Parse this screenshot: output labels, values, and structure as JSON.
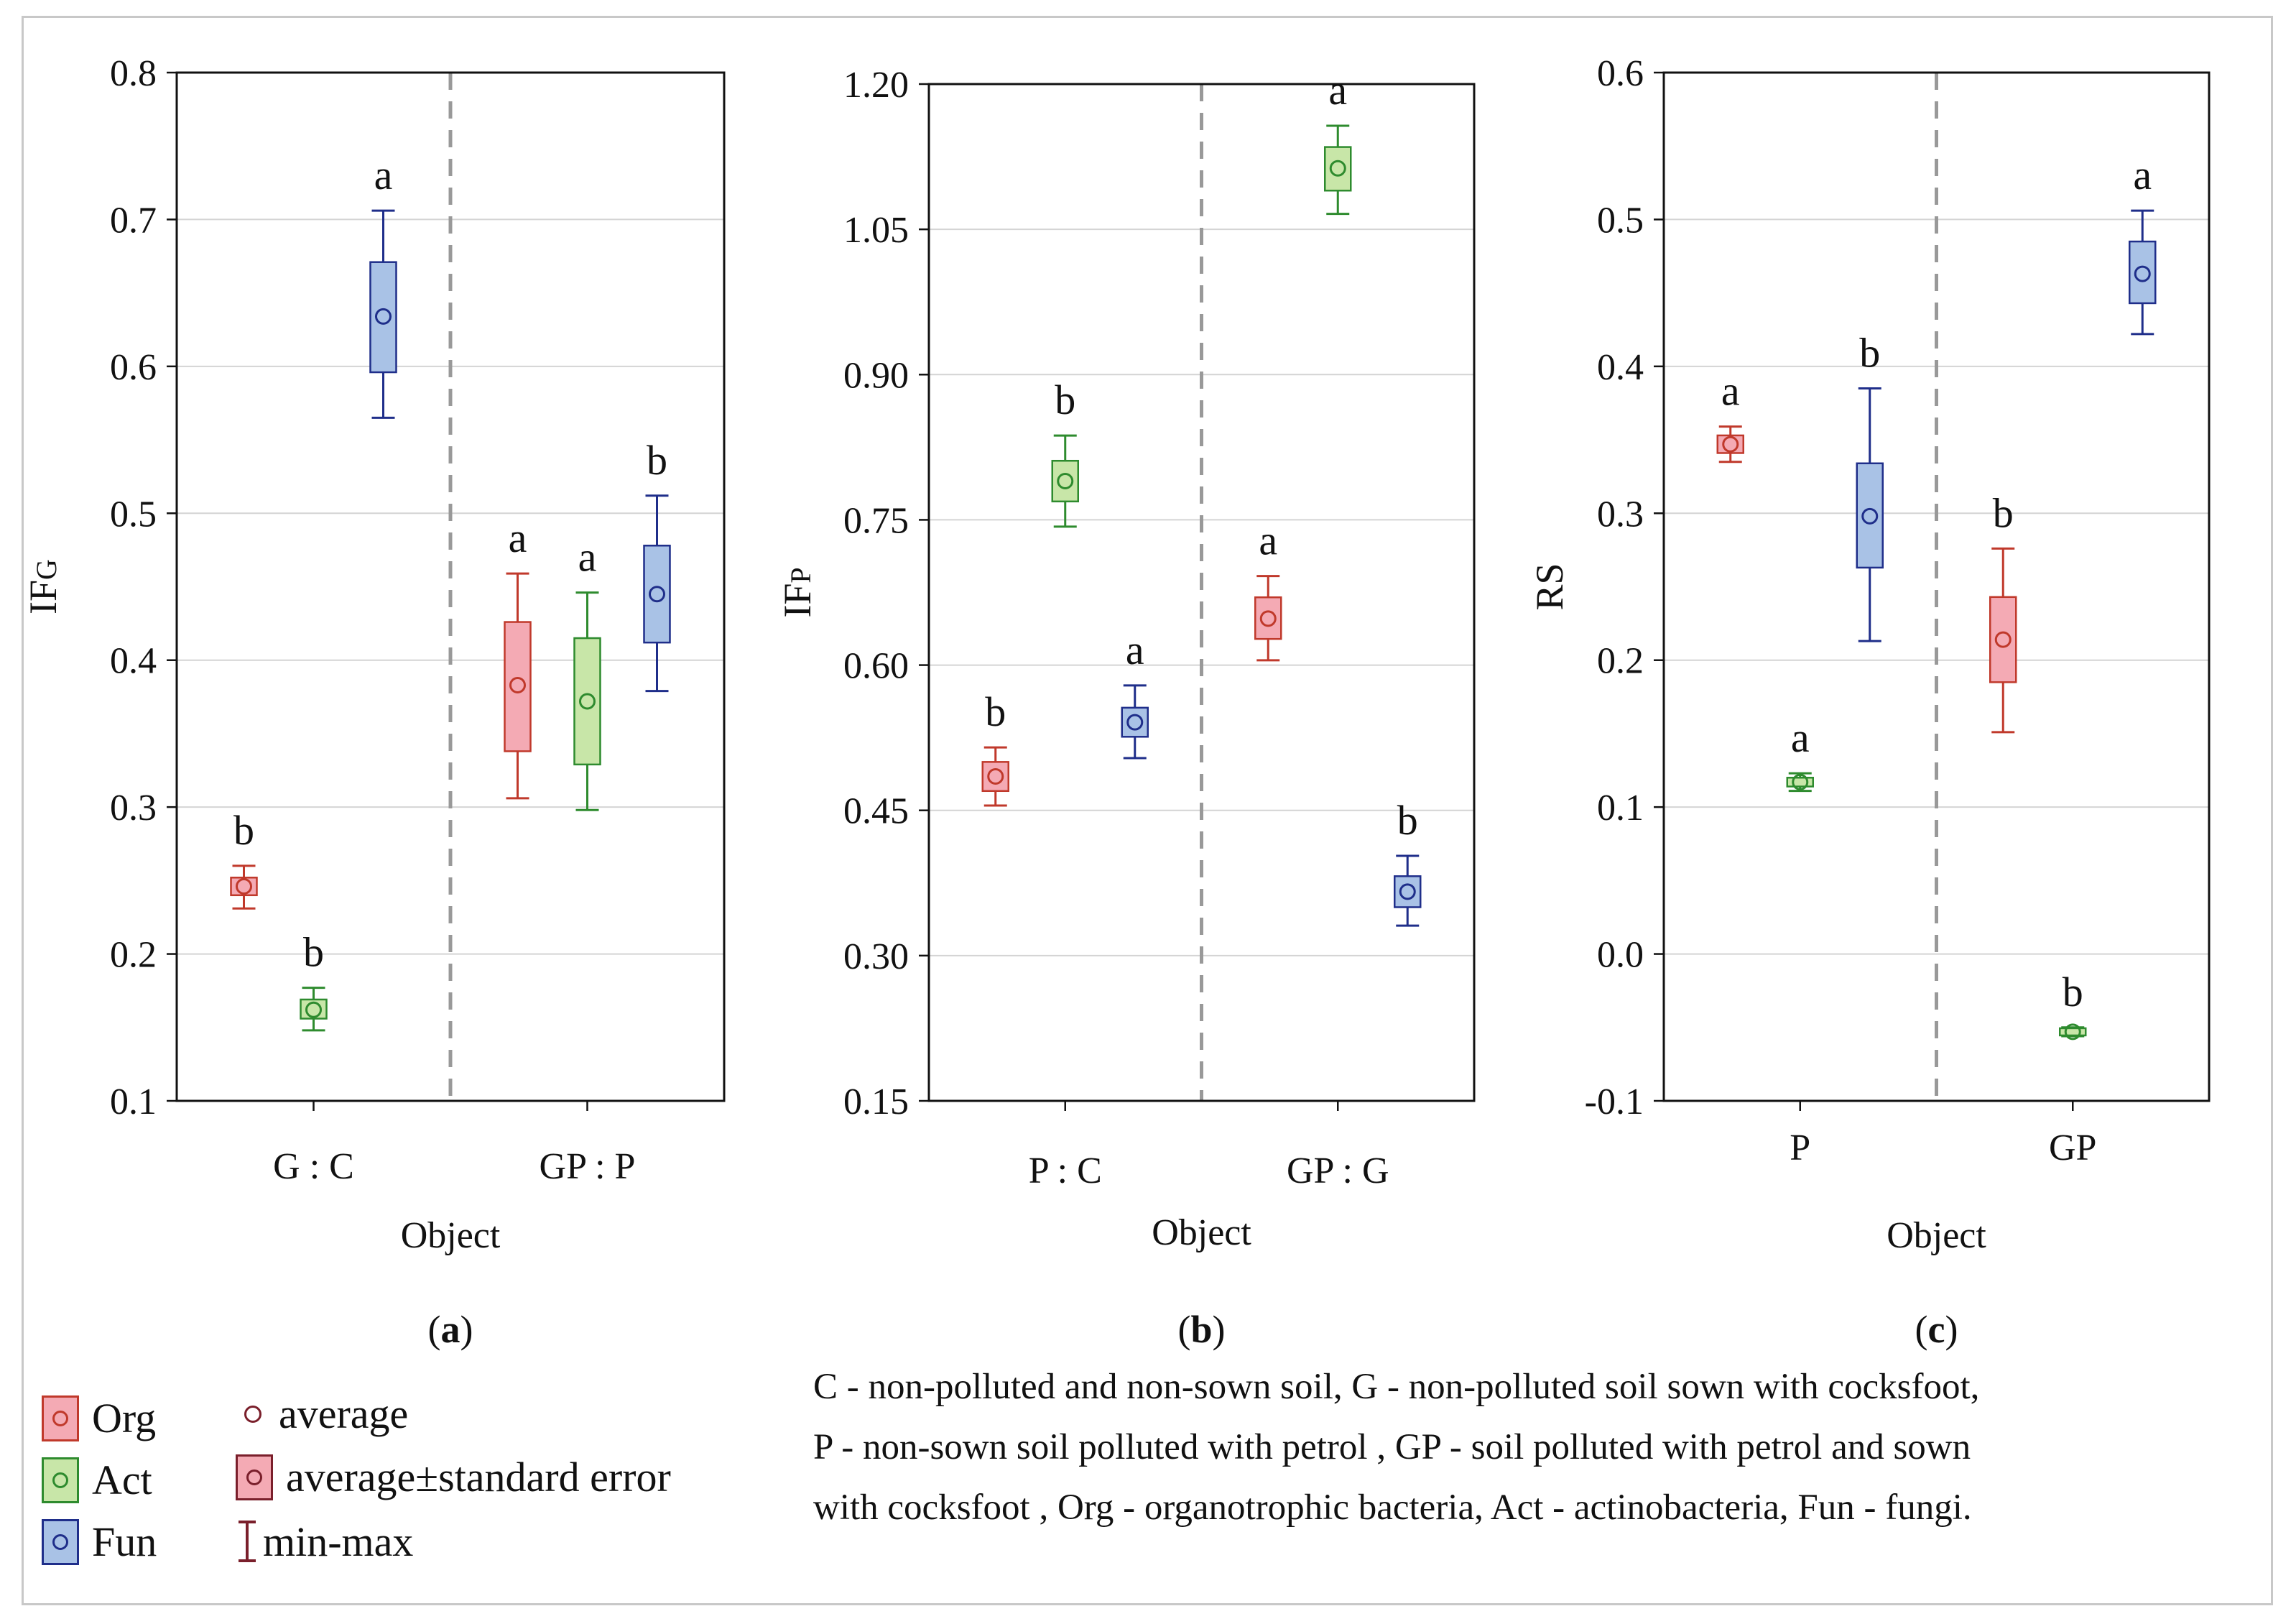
{
  "colors": {
    "org": {
      "stroke": "#c0392b",
      "fill": "#f4aab4"
    },
    "act": {
      "stroke": "#2e8b2e",
      "fill": "#c8e6a8"
    },
    "fun": {
      "stroke": "#1f2e8a",
      "fill": "#a9c2e6"
    }
  },
  "chart_data": [
    {
      "type": "box",
      "panel_label": "(a)",
      "ylabel": "IF",
      "ylabel_sub": "G",
      "xlabel": "Object",
      "ylim": [
        0.1,
        0.8
      ],
      "yticks": [
        "0.1",
        "0.2",
        "0.3",
        "0.4",
        "0.5",
        "0.6",
        "0.7",
        "0.8"
      ],
      "categories": [
        "G : C",
        "GP : P"
      ],
      "series": [
        {
          "name": "Org",
          "boxes": [
            {
              "mean": 0.246,
              "se_low": 0.24,
              "se_high": 0.252,
              "min": 0.231,
              "max": 0.26,
              "letter": "b"
            },
            {
              "mean": 0.383,
              "se_low": 0.338,
              "se_high": 0.426,
              "min": 0.306,
              "max": 0.459,
              "letter": "a"
            }
          ]
        },
        {
          "name": "Act",
          "boxes": [
            {
              "mean": 0.162,
              "se_low": 0.156,
              "se_high": 0.169,
              "min": 0.148,
              "max": 0.177,
              "letter": "b"
            },
            {
              "mean": 0.372,
              "se_low": 0.329,
              "se_high": 0.415,
              "min": 0.298,
              "max": 0.446,
              "letter": "a"
            }
          ]
        },
        {
          "name": "Fun",
          "boxes": [
            {
              "mean": 0.634,
              "se_low": 0.596,
              "se_high": 0.671,
              "min": 0.565,
              "max": 0.706,
              "letter": "a"
            },
            {
              "mean": 0.445,
              "se_low": 0.412,
              "se_high": 0.478,
              "min": 0.379,
              "max": 0.512,
              "letter": "b"
            }
          ]
        }
      ]
    },
    {
      "type": "box",
      "panel_label": "(b)",
      "ylabel": "IF",
      "ylabel_sub": "P",
      "xlabel": "Object",
      "ylim": [
        0.15,
        1.2
      ],
      "yticks": [
        "0.15",
        "0.30",
        "0.45",
        "0.60",
        "0.75",
        "0.90",
        "1.05",
        "1.20"
      ],
      "categories": [
        "P : C",
        "GP : G"
      ],
      "series": [
        {
          "name": "Org",
          "boxes": [
            {
              "mean": 0.485,
              "se_low": 0.47,
              "se_high": 0.5,
              "min": 0.455,
              "max": 0.515,
              "letter": "b"
            },
            {
              "mean": 0.648,
              "se_low": 0.627,
              "se_high": 0.67,
              "min": 0.605,
              "max": 0.692,
              "letter": "a"
            }
          ]
        },
        {
          "name": "Act",
          "boxes": [
            {
              "mean": 0.79,
              "se_low": 0.769,
              "se_high": 0.811,
              "min": 0.743,
              "max": 0.837,
              "letter": "b"
            },
            {
              "mean": 1.113,
              "se_low": 1.09,
              "se_high": 1.135,
              "min": 1.066,
              "max": 1.157,
              "letter": "a"
            }
          ]
        },
        {
          "name": "Fun",
          "boxes": [
            {
              "mean": 0.541,
              "se_low": 0.526,
              "se_high": 0.556,
              "min": 0.504,
              "max": 0.579,
              "letter": "a"
            },
            {
              "mean": 0.366,
              "se_low": 0.35,
              "se_high": 0.382,
              "min": 0.331,
              "max": 0.403,
              "letter": "b"
            }
          ]
        }
      ]
    },
    {
      "type": "box",
      "panel_label": "(c)",
      "ylabel": "RS",
      "ylabel_sub": "",
      "xlabel": "Object",
      "ylim": [
        -0.1,
        0.6
      ],
      "yticks": [
        "-0.1",
        "0.0",
        "0.1",
        "0.2",
        "0.3",
        "0.4",
        "0.5",
        "0.6"
      ],
      "categories": [
        "P",
        "GP"
      ],
      "series": [
        {
          "name": "Org",
          "boxes": [
            {
              "mean": 0.347,
              "se_low": 0.341,
              "se_high": 0.353,
              "min": 0.335,
              "max": 0.359,
              "letter": "a"
            },
            {
              "mean": 0.214,
              "se_low": 0.185,
              "se_high": 0.243,
              "min": 0.151,
              "max": 0.276,
              "letter": "b"
            }
          ]
        },
        {
          "name": "Act",
          "boxes": [
            {
              "mean": 0.117,
              "se_low": 0.114,
              "se_high": 0.12,
              "min": 0.111,
              "max": 0.123,
              "letter": "a"
            },
            {
              "mean": -0.053,
              "se_low": -0.055,
              "se_high": -0.051,
              "min": -0.056,
              "max": -0.05,
              "letter": "b"
            }
          ]
        },
        {
          "name": "Fun",
          "boxes": [
            {
              "mean": 0.298,
              "se_low": 0.263,
              "se_high": 0.334,
              "min": 0.213,
              "max": 0.385,
              "letter": "b"
            },
            {
              "mean": 0.463,
              "se_low": 0.443,
              "se_high": 0.485,
              "min": 0.422,
              "max": 0.506,
              "letter": "a"
            }
          ]
        }
      ]
    }
  ],
  "legend": {
    "org": "Org",
    "act": "Act",
    "fun": "Fun",
    "average": "average",
    "avg_se": "average±standard error",
    "minmax": "min-max"
  },
  "footnote": "C - non-polluted and non-sown soil, G - non-polluted soil sown with cocksfoot,\nP - non-sown soil polluted with petrol , GP - soil polluted with petrol and sown\nwith cocksfoot , Org - organotrophic bacteria, Act - actinobacteria, Fun - fungi."
}
